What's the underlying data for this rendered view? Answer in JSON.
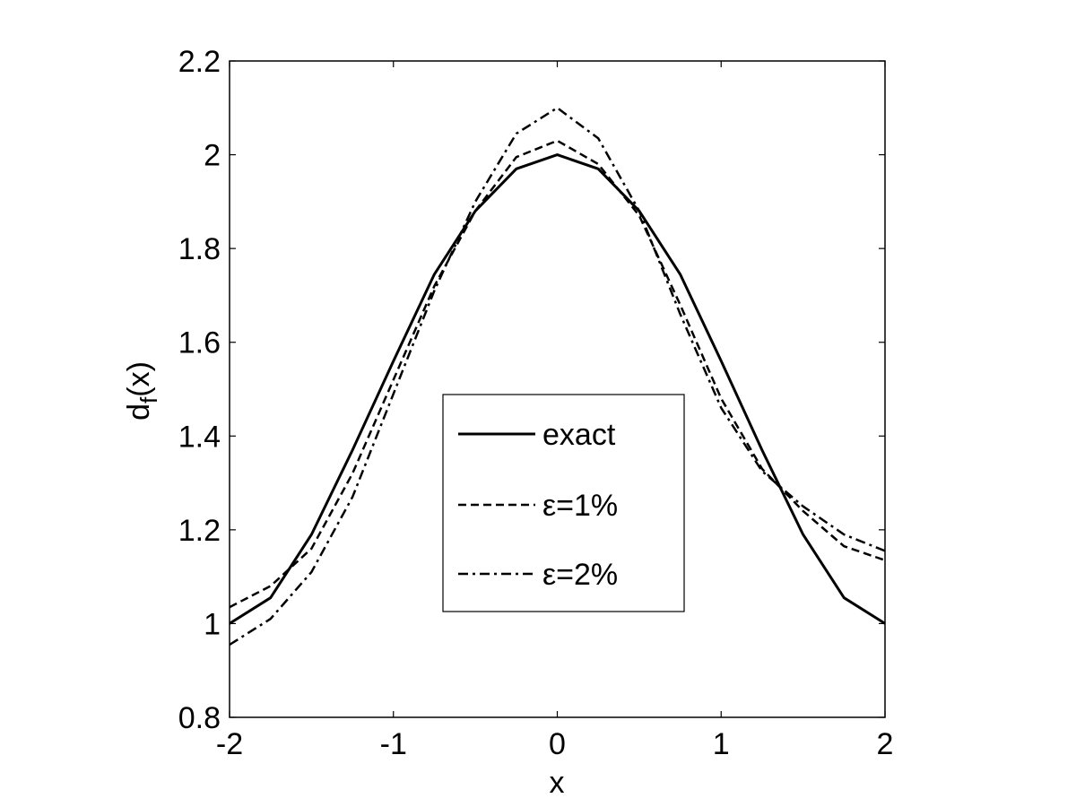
{
  "chart_data": {
    "type": "line",
    "title": "",
    "xlabel": "x",
    "ylabel": "d",
    "ylabel_subscript": "f",
    "ylabel_suffix": "(x)",
    "xlim": [
      -2,
      2
    ],
    "ylim": [
      0.8,
      2.2
    ],
    "xticks": [
      -2,
      -1,
      0,
      1,
      2
    ],
    "xtick_labels": [
      "-2",
      "-1",
      "0",
      "1",
      "2"
    ],
    "yticks": [
      0.8,
      1,
      1.2,
      1.4,
      1.6,
      1.8,
      2,
      2.2
    ],
    "ytick_labels": [
      "0.8",
      "1",
      "1.2",
      "1.4",
      "1.6",
      "1.8",
      "2",
      "2.2"
    ],
    "grid": false,
    "legend_position": "center",
    "x": [
      -2,
      -1.75,
      -1.5,
      -1.25,
      -1,
      -0.75,
      -0.5,
      -0.25,
      0,
      0.25,
      0.5,
      0.75,
      1,
      1.25,
      1.5,
      1.75,
      2
    ],
    "series": [
      {
        "name": "exact",
        "style": "solid",
        "color": "#000000",
        "values": [
          1.0,
          1.055,
          1.19,
          1.37,
          1.56,
          1.745,
          1.88,
          1.97,
          2.0,
          1.97,
          1.88,
          1.745,
          1.56,
          1.37,
          1.19,
          1.055,
          1.0
        ]
      },
      {
        "name": "ε=1%",
        "style": "dashed",
        "color": "#000000",
        "values": [
          1.035,
          1.08,
          1.16,
          1.32,
          1.52,
          1.72,
          1.88,
          1.995,
          2.03,
          1.98,
          1.87,
          1.68,
          1.48,
          1.33,
          1.24,
          1.165,
          1.135
        ]
      },
      {
        "name": "ε=2%",
        "style": "dashdot",
        "color": "#000000",
        "values": [
          0.955,
          1.01,
          1.11,
          1.27,
          1.49,
          1.71,
          1.9,
          2.045,
          2.1,
          2.035,
          1.88,
          1.66,
          1.46,
          1.325,
          1.25,
          1.19,
          1.155
        ]
      }
    ]
  }
}
